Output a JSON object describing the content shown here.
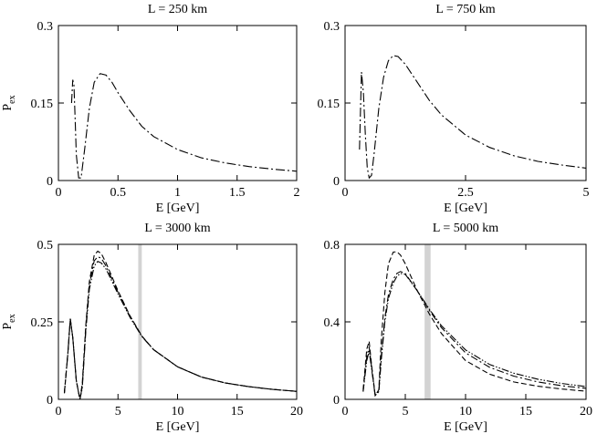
{
  "chart_data": [
    {
      "type": "line",
      "title": "L = 250 km",
      "xlabel": "E [GeV]",
      "ylabel_main": "P",
      "ylabel_sub": "ex",
      "xlim": [
        0,
        2
      ],
      "ylim": [
        0,
        0.3
      ],
      "xticks": [
        0,
        0.5,
        1,
        1.5,
        2
      ],
      "xtick_labels": [
        "0",
        "0.5",
        "1",
        "1.5",
        "2"
      ],
      "yticks": [
        0,
        0.15,
        0.3
      ],
      "ytick_labels": [
        "0",
        "0.15",
        "0.3"
      ],
      "band": null,
      "series": [
        {
          "name": "curve-1",
          "dash": "10,3,2,3",
          "x": [
            0.11,
            0.12,
            0.13,
            0.14,
            0.15,
            0.17,
            0.19,
            0.22,
            0.26,
            0.3,
            0.35,
            0.4,
            0.45,
            0.5,
            0.6,
            0.7,
            0.8,
            1.0,
            1.2,
            1.4,
            1.6,
            1.8,
            2.0
          ],
          "y": [
            0.15,
            0.195,
            0.185,
            0.12,
            0.05,
            0.005,
            0.005,
            0.06,
            0.14,
            0.19,
            0.207,
            0.204,
            0.19,
            0.17,
            0.135,
            0.105,
            0.085,
            0.06,
            0.044,
            0.034,
            0.027,
            0.022,
            0.018
          ]
        }
      ]
    },
    {
      "type": "line",
      "title": "L = 750 km",
      "xlabel": "E [GeV]",
      "ylabel_main": "",
      "ylabel_sub": "",
      "xlim": [
        0,
        5
      ],
      "ylim": [
        0,
        0.3
      ],
      "xticks": [
        0,
        2.5,
        5
      ],
      "xtick_labels": [
        "0",
        "2.5",
        "5"
      ],
      "yticks": [
        0,
        0.15,
        0.3
      ],
      "ytick_labels": [
        "0",
        "0.15",
        "0.3"
      ],
      "band": null,
      "series": [
        {
          "name": "curve-1",
          "dash": "10,3,2,3",
          "x": [
            0.3,
            0.34,
            0.38,
            0.42,
            0.46,
            0.5,
            0.55,
            0.6,
            0.7,
            0.8,
            0.9,
            1.0,
            1.1,
            1.25,
            1.5,
            1.75,
            2.0,
            2.5,
            3.0,
            3.5,
            4.0,
            4.5,
            5.0
          ],
          "y": [
            0.06,
            0.21,
            0.17,
            0.09,
            0.025,
            0.005,
            0.01,
            0.05,
            0.14,
            0.2,
            0.232,
            0.242,
            0.24,
            0.225,
            0.19,
            0.155,
            0.127,
            0.088,
            0.064,
            0.048,
            0.037,
            0.03,
            0.024
          ]
        }
      ]
    },
    {
      "type": "line",
      "title": "L = 3000 km",
      "xlabel": "E [GeV]",
      "ylabel_main": "P",
      "ylabel_sub": "ex",
      "xlim": [
        0,
        20
      ],
      "ylim": [
        0,
        0.5
      ],
      "xticks": [
        0,
        5,
        10,
        15,
        20
      ],
      "xtick_labels": [
        "0",
        "5",
        "10",
        "15",
        "20"
      ],
      "yticks": [
        0,
        0.25,
        0.5
      ],
      "ytick_labels": [
        "0",
        "0.25",
        "0.5"
      ],
      "band": [
        6.7,
        7.0
      ],
      "series": [
        {
          "name": "curve-dashed",
          "dash": "6,3",
          "x": [
            0.5,
            0.8,
            1.0,
            1.2,
            1.5,
            1.8,
            2.0,
            2.3,
            2.6,
            3.0,
            3.3,
            3.6,
            4.0,
            5.0,
            6.0,
            7.0,
            8.0,
            10.0,
            12.0,
            14.0,
            16.0,
            18.0,
            20.0
          ],
          "y": [
            0.02,
            0.15,
            0.26,
            0.2,
            0.06,
            0.0,
            0.05,
            0.24,
            0.38,
            0.465,
            0.478,
            0.47,
            0.44,
            0.35,
            0.27,
            0.205,
            0.16,
            0.105,
            0.072,
            0.053,
            0.041,
            0.032,
            0.026
          ]
        },
        {
          "name": "curve-dash-dot",
          "dash": "8,3,2,3",
          "x": [
            0.5,
            0.8,
            1.0,
            1.2,
            1.5,
            1.8,
            2.0,
            2.3,
            2.6,
            3.0,
            3.3,
            3.6,
            4.0,
            5.0,
            6.0,
            7.0,
            8.0,
            10.0,
            12.0,
            14.0,
            16.0,
            18.0,
            20.0
          ],
          "y": [
            0.02,
            0.15,
            0.26,
            0.2,
            0.06,
            0.0,
            0.04,
            0.23,
            0.37,
            0.447,
            0.46,
            0.455,
            0.43,
            0.345,
            0.268,
            0.204,
            0.16,
            0.105,
            0.072,
            0.053,
            0.041,
            0.032,
            0.026
          ]
        },
        {
          "name": "curve-dash-dot-dot",
          "dash": "8,2,1.5,2,1.5,2",
          "x": [
            0.5,
            0.8,
            1.0,
            1.2,
            1.5,
            1.8,
            2.0,
            2.3,
            2.6,
            3.0,
            3.3,
            3.6,
            4.0,
            5.0,
            6.0,
            7.0,
            8.0,
            10.0,
            12.0,
            14.0,
            16.0,
            18.0,
            20.0
          ],
          "y": [
            0.02,
            0.15,
            0.26,
            0.2,
            0.06,
            0.0,
            0.035,
            0.22,
            0.355,
            0.43,
            0.445,
            0.44,
            0.42,
            0.34,
            0.265,
            0.203,
            0.16,
            0.105,
            0.072,
            0.053,
            0.041,
            0.032,
            0.026
          ]
        }
      ]
    },
    {
      "type": "line",
      "title": "L = 5000 km",
      "xlabel": "E [GeV]",
      "ylabel_main": "",
      "ylabel_sub": "",
      "xlim": [
        0,
        20
      ],
      "ylim": [
        0,
        0.8
      ],
      "xticks": [
        0,
        5,
        10,
        15,
        20
      ],
      "xtick_labels": [
        "0",
        "5",
        "10",
        "15",
        "20"
      ],
      "yticks": [
        0,
        0.4,
        0.8
      ],
      "ytick_labels": [
        "0",
        "0.4",
        "0.8"
      ],
      "band": [
        6.6,
        7.1
      ],
      "series": [
        {
          "name": "curve-dashed",
          "dash": "6,3",
          "x": [
            1.5,
            1.8,
            2.0,
            2.2,
            2.5,
            2.8,
            3.0,
            3.3,
            3.6,
            4.0,
            4.3,
            4.6,
            5.0,
            6.0,
            7.0,
            8.0,
            10.0,
            12.0,
            14.0,
            16.0,
            18.0,
            20.0
          ],
          "y": [
            0.05,
            0.26,
            0.3,
            0.18,
            0.02,
            0.05,
            0.3,
            0.55,
            0.7,
            0.76,
            0.762,
            0.745,
            0.7,
            0.56,
            0.44,
            0.34,
            0.2,
            0.13,
            0.09,
            0.068,
            0.053,
            0.042
          ]
        },
        {
          "name": "curve-dash-dot",
          "dash": "8,3,2,3",
          "x": [
            1.5,
            1.8,
            2.0,
            2.2,
            2.5,
            2.8,
            3.0,
            3.3,
            3.6,
            4.0,
            4.3,
            4.6,
            5.0,
            6.0,
            7.0,
            8.0,
            10.0,
            12.0,
            14.0,
            16.0,
            18.0,
            20.0
          ],
          "y": [
            0.04,
            0.22,
            0.27,
            0.17,
            0.02,
            0.04,
            0.22,
            0.42,
            0.54,
            0.62,
            0.65,
            0.66,
            0.65,
            0.56,
            0.46,
            0.37,
            0.24,
            0.165,
            0.12,
            0.09,
            0.07,
            0.057
          ]
        },
        {
          "name": "curve-dash-dot-dot",
          "dash": "8,2,1.5,2,1.5,2",
          "x": [
            1.5,
            1.8,
            2.0,
            2.2,
            2.5,
            2.8,
            3.0,
            3.3,
            3.6,
            4.0,
            4.3,
            4.6,
            5.0,
            6.0,
            7.0,
            8.0,
            10.0,
            12.0,
            14.0,
            16.0,
            18.0,
            20.0
          ],
          "y": [
            0.04,
            0.2,
            0.25,
            0.16,
            0.02,
            0.04,
            0.2,
            0.4,
            0.52,
            0.6,
            0.635,
            0.65,
            0.645,
            0.56,
            0.465,
            0.38,
            0.255,
            0.18,
            0.135,
            0.104,
            0.082,
            0.066
          ]
        }
      ]
    }
  ]
}
